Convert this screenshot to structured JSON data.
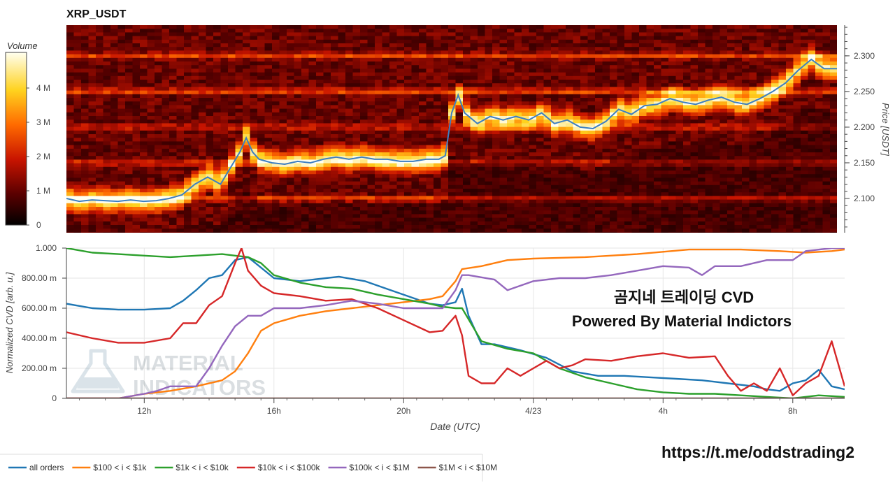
{
  "title": "XRP_USDT",
  "colorbar": {
    "label": "Volume",
    "ticks": [
      {
        "value": 0,
        "label": "0"
      },
      {
        "value": 1,
        "label": "1 M"
      },
      {
        "value": 2,
        "label": "2 M"
      },
      {
        "value": 3,
        "label": "3 M"
      },
      {
        "value": 4,
        "label": "4 M"
      }
    ],
    "range": [
      0,
      5.04
    ]
  },
  "overlay": {
    "line1": "곰지네 트레이딩 CVD",
    "line2": "Powered By Material Indictors",
    "watermark_line1": "MATERIAL",
    "watermark_line2": "INDICATORS",
    "link": "https://t.me/oddstrading2"
  },
  "chart_data": [
    {
      "type": "heatmap",
      "title": "XRP_USDT",
      "ylabel": "Price [USDT]",
      "ylim": [
        2.052,
        2.343
      ],
      "ytick_values": [
        2.1,
        2.15,
        2.2,
        2.25,
        2.3
      ],
      "ytick_labels": [
        "2.100",
        "2.150",
        "2.200",
        "2.250",
        "2.300"
      ],
      "xlim": [
        9.6,
        33.6
      ],
      "price_line_color": "#3d7fc1",
      "price": {
        "x": [
          9.6,
          10.0,
          10.4,
          10.8,
          11.2,
          11.6,
          12.0,
          12.4,
          12.8,
          13.2,
          13.6,
          14.0,
          14.4,
          14.8,
          15.0,
          15.2,
          15.4,
          15.6,
          16.0,
          16.4,
          16.8,
          17.2,
          17.6,
          18.0,
          18.4,
          18.8,
          19.2,
          19.6,
          20.0,
          20.4,
          20.8,
          21.2,
          21.4,
          21.6,
          21.8,
          22.0,
          22.4,
          22.8,
          23.2,
          23.6,
          24.0,
          24.4,
          24.8,
          25.2,
          25.6,
          26.0,
          26.4,
          26.8,
          27.2,
          27.6,
          28.0,
          28.4,
          28.8,
          29.2,
          29.6,
          30.0,
          30.4,
          30.8,
          31.2,
          31.6,
          32.0,
          32.4,
          32.8,
          33.2,
          33.6
        ],
        "values": [
          2.1,
          2.096,
          2.098,
          2.097,
          2.096,
          2.098,
          2.096,
          2.097,
          2.1,
          2.105,
          2.12,
          2.13,
          2.12,
          2.15,
          2.165,
          2.185,
          2.165,
          2.155,
          2.15,
          2.148,
          2.152,
          2.15,
          2.155,
          2.158,
          2.155,
          2.158,
          2.155,
          2.155,
          2.152,
          2.152,
          2.155,
          2.155,
          2.16,
          2.22,
          2.245,
          2.22,
          2.205,
          2.215,
          2.21,
          2.215,
          2.21,
          2.22,
          2.205,
          2.21,
          2.2,
          2.198,
          2.208,
          2.225,
          2.218,
          2.23,
          2.232,
          2.24,
          2.235,
          2.232,
          2.238,
          2.242,
          2.235,
          2.232,
          2.24,
          2.25,
          2.262,
          2.28,
          2.295,
          2.282,
          2.282
        ]
      },
      "bands": [
        {
          "price": 2.1,
          "volume": 4.6
        },
        {
          "price": 2.15,
          "volume": 3.8
        },
        {
          "price": 2.2,
          "volume": 3.2
        },
        {
          "price": 2.25,
          "volume": 4.8
        },
        {
          "price": 2.3,
          "volume": 4.2
        }
      ]
    },
    {
      "type": "line",
      "xlabel": "Date (UTC)",
      "ylabel": "Normalized CVD [arb. u.]",
      "xlim": [
        9.6,
        33.6
      ],
      "ylim": [
        0,
        1.0
      ],
      "x_ticks": [
        12,
        16,
        20,
        24,
        28,
        32
      ],
      "x_tick_labels": [
        "12h",
        "16h",
        "20h",
        "4/23",
        "4h",
        "8h"
      ],
      "y_ticks": [
        0,
        0.2,
        0.4,
        0.6,
        0.8,
        1.0
      ],
      "y_tick_labels": [
        "0",
        "200.00 m",
        "400.00 m",
        "600.00 m",
        "800.00 m",
        "1.000"
      ],
      "legend_position": "bottom-left",
      "series": [
        {
          "name": "all orders",
          "color": "#1f77b4",
          "x": [
            9.6,
            10.4,
            11.2,
            12.0,
            12.8,
            13.2,
            13.6,
            14.0,
            14.4,
            14.8,
            15.2,
            15.6,
            16.0,
            16.8,
            17.6,
            18.0,
            18.8,
            19.6,
            20.4,
            20.8,
            21.2,
            21.6,
            21.8,
            22.0,
            22.4,
            22.8,
            23.6,
            24.4,
            25.2,
            26.0,
            26.8,
            27.6,
            28.4,
            29.2,
            30.0,
            30.8,
            31.2,
            31.6,
            32.0,
            32.4,
            32.8,
            33.2,
            33.6
          ],
          "values": [
            0.63,
            0.6,
            0.59,
            0.59,
            0.6,
            0.65,
            0.72,
            0.8,
            0.82,
            0.92,
            0.94,
            0.87,
            0.8,
            0.78,
            0.8,
            0.81,
            0.78,
            0.72,
            0.66,
            0.63,
            0.62,
            0.64,
            0.73,
            0.55,
            0.36,
            0.36,
            0.32,
            0.27,
            0.18,
            0.15,
            0.15,
            0.14,
            0.13,
            0.12,
            0.1,
            0.08,
            0.06,
            0.05,
            0.1,
            0.12,
            0.19,
            0.08,
            0.06
          ]
        },
        {
          "name": "$100 < i < $1k",
          "color": "#ff7f0e",
          "x": [
            9.6,
            10.4,
            11.2,
            12.0,
            12.8,
            13.6,
            14.4,
            14.8,
            15.2,
            15.6,
            16.0,
            16.8,
            17.6,
            18.4,
            19.2,
            20.0,
            20.8,
            21.2,
            21.6,
            21.8,
            22.4,
            23.2,
            24.0,
            25.6,
            27.2,
            28.8,
            30.4,
            31.6,
            32.4,
            33.2,
            33.6
          ],
          "values": [
            0.0,
            0.0,
            0.0,
            0.03,
            0.05,
            0.08,
            0.12,
            0.18,
            0.3,
            0.45,
            0.5,
            0.55,
            0.58,
            0.6,
            0.62,
            0.64,
            0.66,
            0.68,
            0.78,
            0.86,
            0.88,
            0.92,
            0.93,
            0.94,
            0.96,
            0.99,
            0.99,
            0.98,
            0.97,
            0.98,
            0.99
          ]
        },
        {
          "name": "$1k < i < $10k",
          "color": "#2ca02c",
          "x": [
            9.6,
            10.4,
            11.2,
            12.0,
            12.8,
            13.6,
            14.4,
            14.8,
            15.2,
            15.6,
            16.0,
            16.8,
            17.6,
            18.4,
            19.2,
            20.0,
            20.8,
            21.2,
            21.6,
            21.8,
            22.4,
            23.2,
            24.0,
            24.8,
            25.6,
            26.4,
            27.2,
            28.0,
            28.8,
            29.6,
            30.4,
            31.2,
            32.0,
            32.8,
            33.6
          ],
          "values": [
            1.0,
            0.97,
            0.96,
            0.95,
            0.94,
            0.95,
            0.96,
            0.95,
            0.94,
            0.9,
            0.82,
            0.77,
            0.74,
            0.73,
            0.69,
            0.66,
            0.63,
            0.61,
            0.6,
            0.6,
            0.38,
            0.33,
            0.3,
            0.2,
            0.14,
            0.1,
            0.06,
            0.04,
            0.03,
            0.03,
            0.02,
            0.01,
            0.0,
            0.02,
            0.01
          ]
        },
        {
          "name": "$10k < i < $100k",
          "color": "#d62728",
          "x": [
            9.6,
            10.4,
            11.2,
            12.0,
            12.8,
            13.2,
            13.6,
            14.0,
            14.4,
            14.8,
            15.0,
            15.2,
            15.6,
            16.0,
            16.8,
            17.6,
            18.4,
            19.2,
            20.0,
            20.8,
            21.2,
            21.4,
            21.6,
            21.8,
            22.0,
            22.4,
            22.8,
            23.2,
            23.6,
            24.0,
            24.4,
            24.8,
            25.2,
            25.6,
            26.4,
            27.2,
            28.0,
            28.8,
            29.6,
            30.0,
            30.4,
            30.8,
            31.2,
            31.6,
            32.0,
            32.4,
            32.8,
            33.2,
            33.6
          ],
          "values": [
            0.44,
            0.4,
            0.37,
            0.37,
            0.4,
            0.5,
            0.5,
            0.62,
            0.68,
            0.9,
            1.0,
            0.85,
            0.75,
            0.7,
            0.68,
            0.65,
            0.66,
            0.6,
            0.52,
            0.44,
            0.45,
            0.5,
            0.55,
            0.42,
            0.15,
            0.1,
            0.1,
            0.2,
            0.15,
            0.2,
            0.25,
            0.2,
            0.22,
            0.26,
            0.25,
            0.28,
            0.3,
            0.27,
            0.28,
            0.15,
            0.05,
            0.1,
            0.05,
            0.2,
            0.02,
            0.1,
            0.15,
            0.38,
            0.08
          ]
        },
        {
          "name": "$100k < i < $1M",
          "color": "#9467bd",
          "x": [
            9.6,
            10.4,
            11.2,
            12.0,
            12.4,
            12.8,
            13.2,
            13.6,
            14.0,
            14.4,
            14.8,
            15.2,
            15.6,
            16.0,
            16.8,
            17.6,
            18.4,
            19.2,
            20.0,
            20.8,
            21.2,
            21.6,
            21.8,
            22.0,
            22.8,
            23.2,
            23.6,
            24.0,
            24.8,
            25.6,
            26.4,
            27.2,
            28.0,
            28.8,
            29.2,
            29.6,
            30.4,
            31.2,
            32.0,
            32.4,
            33.2,
            33.6
          ],
          "values": [
            0.0,
            0.0,
            0.0,
            0.03,
            0.05,
            0.08,
            0.08,
            0.08,
            0.2,
            0.35,
            0.48,
            0.55,
            0.55,
            0.6,
            0.6,
            0.62,
            0.65,
            0.63,
            0.6,
            0.6,
            0.6,
            0.72,
            0.82,
            0.82,
            0.79,
            0.72,
            0.75,
            0.78,
            0.8,
            0.8,
            0.82,
            0.85,
            0.88,
            0.87,
            0.82,
            0.88,
            0.88,
            0.92,
            0.92,
            0.98,
            1.0,
            1.0
          ]
        },
        {
          "name": "$1M < i < $10M",
          "color": "#8c564b",
          "x": [
            9.6,
            33.6
          ],
          "values": [
            0.0,
            0.0
          ]
        }
      ]
    }
  ]
}
